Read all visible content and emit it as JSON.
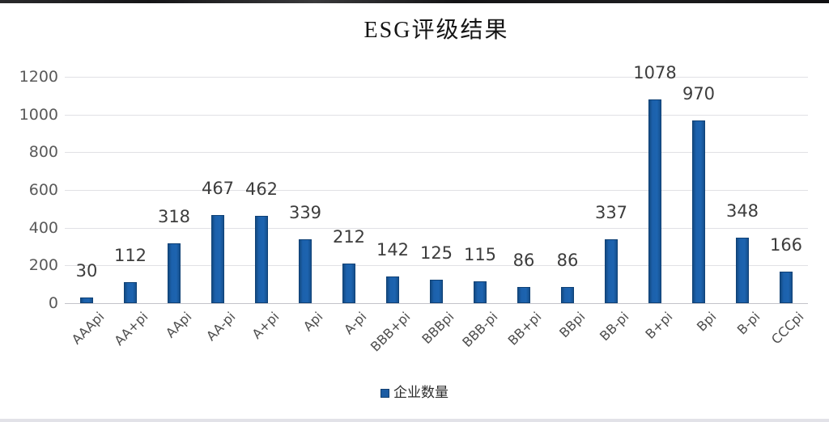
{
  "chart_data": {
    "type": "bar",
    "title": "ESG评级结果",
    "categories": [
      "AAApi",
      "AA+pi",
      "AApi",
      "AA-pi",
      "A+pi",
      "Api",
      "A-pi",
      "BBB+pi",
      "BBBpi",
      "BBB-pi",
      "BB+pi",
      "BBpi",
      "BB-pi",
      "B+pi",
      "Bpi",
      "B-pi",
      "CCCpi"
    ],
    "values": [
      30,
      112,
      318,
      467,
      462,
      339,
      212,
      142,
      125,
      115,
      86,
      86,
      337,
      1078,
      970,
      348,
      166
    ],
    "series_name": "企业数量",
    "legend_entries": [
      "企业数量"
    ],
    "legend_position": "bottom",
    "xlabel": "",
    "ylabel": "",
    "ylim": [
      0,
      1200
    ],
    "ytick_step": 200,
    "ytick_labels": [
      "0",
      "200",
      "400",
      "600",
      "800",
      "1000",
      "1200"
    ],
    "grid": true,
    "data_labels": true,
    "bar_color": "#1c61ac",
    "bar_edge_color": "#0f4176",
    "label_color": "#3d3d3d",
    "axis_text_color": "#595959"
  }
}
